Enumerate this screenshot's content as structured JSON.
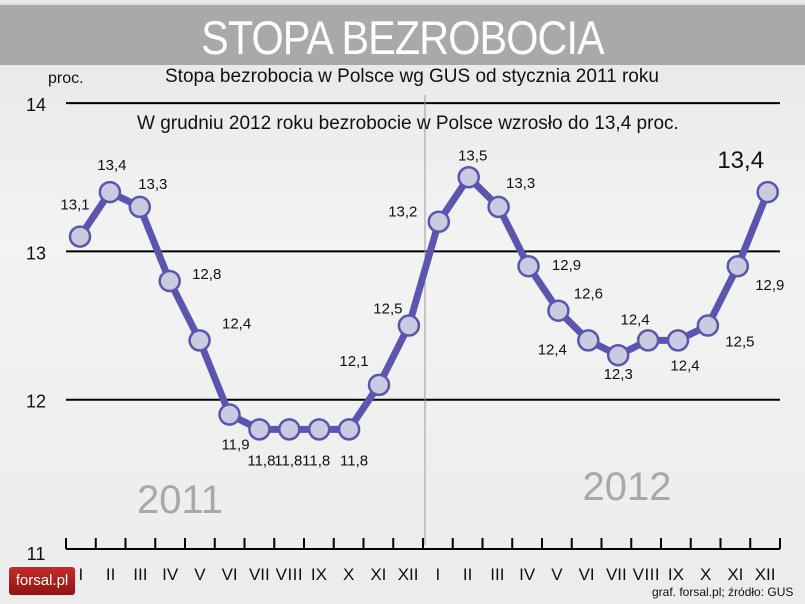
{
  "banner": {
    "title": "STOPA BEZROBOCIA"
  },
  "logo": "forsal.pl",
  "source": "graf. forsal.pl; źródło: GUS",
  "colors": {
    "line": "#5b55b0",
    "marker": "#c9cbe0",
    "banner": "#a9a9a9"
  },
  "chart_data": {
    "type": "line",
    "title": "Stopa bezrobocia w Polsce wg GUS od stycznia 2011 roku",
    "subtitle": "W grudniu 2012 roku bezrobocie w Polsce wzrosło do 13,4 proc.",
    "ylabel": "proc.",
    "ylim": [
      11,
      14
    ],
    "yticks": [
      "11",
      "12",
      "13",
      "14"
    ],
    "grid": true,
    "year_labels": [
      "2011",
      "2012"
    ],
    "categories": [
      "I",
      "II",
      "III",
      "IV",
      "V",
      "VI",
      "VII",
      "VIII",
      "IX",
      "X",
      "XI",
      "XII",
      "I",
      "II",
      "III",
      "IV",
      "V",
      "VI",
      "VII",
      "VIII",
      "IX",
      "X",
      "XI",
      "XII"
    ],
    "values": [
      13.1,
      13.4,
      13.3,
      12.8,
      12.4,
      11.9,
      11.8,
      11.8,
      11.8,
      11.8,
      12.1,
      12.5,
      13.2,
      13.5,
      13.3,
      12.9,
      12.6,
      12.4,
      12.3,
      12.4,
      12.4,
      12.5,
      12.9,
      13.4
    ],
    "data_labels": [
      "13,1",
      "13,4",
      "13,3",
      "12,8",
      "12,4",
      "11,9",
      "11,8",
      "11,8",
      "11,8",
      "11,8",
      "12,1",
      "12,5",
      "13,2",
      "13,5",
      "13,3",
      "12,9",
      "12,6",
      "12,4",
      "12,3",
      "12,4",
      "12,4",
      "12,5",
      "12,9",
      "13,4"
    ]
  }
}
